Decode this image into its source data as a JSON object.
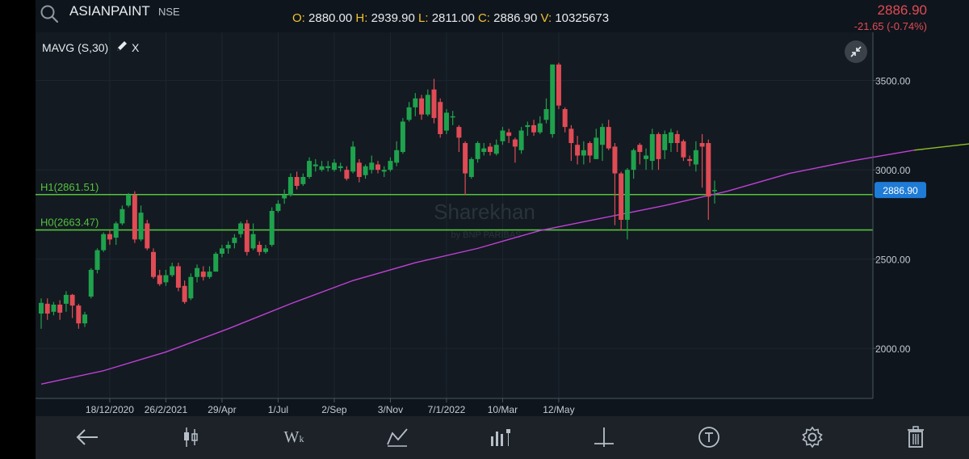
{
  "header": {
    "symbol": "ASIANPAINT",
    "exchange": "NSE",
    "ohlc": [
      {
        "key": "O:",
        "value": "2880.00"
      },
      {
        "key": "H:",
        "value": "2939.90"
      },
      {
        "key": "L:",
        "value": "2811.00"
      },
      {
        "key": "C:",
        "value": "2886.90"
      },
      {
        "key": "V:",
        "value": "10325673"
      }
    ],
    "last_price": "2886.90",
    "change": "-21.65 (-0.74%)"
  },
  "indicator": {
    "label": "MAVG (S,30)",
    "remove": "X"
  },
  "watermark": {
    "brand": "Sharekhan",
    "tagline": "by BNP PARIBAS"
  },
  "toolbar": {
    "icons": [
      "back-arrow-icon",
      "candlestick-icon",
      "timeframe-icon",
      "drawing-tools-icon",
      "indicators-icon",
      "crosshair-icon",
      "trendline-icon",
      "settings-icon",
      "trash-icon"
    ],
    "timeframe_label": "W",
    "timeframe_sub": "k"
  },
  "colors": {
    "up": "#1fa24d",
    "down": "#e04b55",
    "ma": "#c040d8",
    "level": "#55c23e",
    "price_tag_bg": "#1e7bd6"
  },
  "chart_data": {
    "type": "candlestick",
    "interval": "weekly",
    "x_tick_labels": [
      "18/12/2020",
      "26/2/2021",
      "29/Apr",
      "1/Jul",
      "2/Sep",
      "3/Nov",
      "7/1/2022",
      "10/Mar",
      "12/May"
    ],
    "y_ticks": [
      2000,
      2500,
      3000,
      3500
    ],
    "y_tick_labels": [
      "2000.00",
      "2500.00",
      "3000.00",
      "3500.00"
    ],
    "ylim": [
      1720,
      3770
    ],
    "grid": true,
    "levels": [
      {
        "label": "H1(2861.51)",
        "value": 2861.51
      },
      {
        "label": "H0(2663.47)",
        "value": 2663.47
      }
    ],
    "current_price_tag": "2886.90",
    "series": [
      {
        "name": "MAVG (S,30)",
        "type": "line"
      }
    ],
    "candles": [
      [
        2195,
        2255,
        2110,
        2280
      ],
      [
        2250,
        2195,
        2160,
        2280
      ],
      [
        2205,
        2245,
        2185,
        2260
      ],
      [
        2245,
        2200,
        2160,
        2270
      ],
      [
        2250,
        2300,
        2205,
        2320
      ],
      [
        2300,
        2240,
        2170,
        2305
      ],
      [
        2240,
        2140,
        2110,
        2250
      ],
      [
        2140,
        2190,
        2120,
        2205
      ],
      [
        2290,
        2440,
        2280,
        2450
      ],
      [
        2440,
        2550,
        2420,
        2560
      ],
      [
        2550,
        2640,
        2540,
        2650
      ],
      [
        2640,
        2610,
        2580,
        2660
      ],
      [
        2620,
        2700,
        2580,
        2710
      ],
      [
        2700,
        2780,
        2690,
        2800
      ],
      [
        2800,
        2860,
        2790,
        2870
      ],
      [
        2860,
        2610,
        2590,
        2880
      ],
      [
        2610,
        2760,
        2600,
        2800
      ],
      [
        2700,
        2560,
        2550,
        2720
      ],
      [
        2540,
        2400,
        2390,
        2560
      ],
      [
        2410,
        2360,
        2350,
        2440
      ],
      [
        2370,
        2410,
        2350,
        2440
      ],
      [
        2410,
        2460,
        2400,
        2480
      ],
      [
        2460,
        2340,
        2320,
        2480
      ],
      [
        2350,
        2260,
        2250,
        2380
      ],
      [
        2280,
        2400,
        2270,
        2420
      ],
      [
        2400,
        2450,
        2370,
        2470
      ],
      [
        2430,
        2400,
        2380,
        2460
      ],
      [
        2400,
        2430,
        2390,
        2460
      ],
      [
        2430,
        2530,
        2430,
        2540
      ],
      [
        2530,
        2560,
        2510,
        2580
      ],
      [
        2560,
        2580,
        2530,
        2600
      ],
      [
        2590,
        2620,
        2560,
        2640
      ],
      [
        2640,
        2700,
        2620,
        2710
      ],
      [
        2700,
        2540,
        2520,
        2720
      ],
      [
        2560,
        2640,
        2550,
        2700
      ],
      [
        2580,
        2540,
        2520,
        2600
      ],
      [
        2540,
        2560,
        2530,
        2580
      ],
      [
        2580,
        2770,
        2570,
        2790
      ],
      [
        2770,
        2810,
        2760,
        2830
      ],
      [
        2840,
        2860,
        2810,
        2890
      ],
      [
        2860,
        2960,
        2850,
        2980
      ],
      [
        2960,
        2910,
        2890,
        2990
      ],
      [
        2920,
        2960,
        2910,
        2980
      ],
      [
        2960,
        3050,
        2950,
        3070
      ],
      [
        3020,
        3030,
        2990,
        3060
      ],
      [
        3000,
        3020,
        2990,
        3050
      ],
      [
        3010,
        3020,
        2990,
        3050
      ],
      [
        3000,
        3040,
        2990,
        3060
      ],
      [
        3010,
        3020,
        2990,
        3040
      ],
      [
        3000,
        2950,
        2940,
        3020
      ],
      [
        2990,
        3130,
        2980,
        3160
      ],
      [
        3040,
        2960,
        2930,
        3060
      ],
      [
        2970,
        3020,
        2950,
        3030
      ],
      [
        3000,
        3040,
        2980,
        3080
      ],
      [
        3030,
        3000,
        2980,
        3050
      ],
      [
        2990,
        3000,
        2960,
        3020
      ],
      [
        3000,
        3050,
        2990,
        3070
      ],
      [
        3040,
        3110,
        3020,
        3160
      ],
      [
        3100,
        3270,
        3090,
        3290
      ],
      [
        3280,
        3350,
        3270,
        3380
      ],
      [
        3350,
        3400,
        3300,
        3430
      ],
      [
        3400,
        3310,
        3280,
        3420
      ],
      [
        3310,
        3420,
        3300,
        3450
      ],
      [
        3450,
        3290,
        3260,
        3510
      ],
      [
        3380,
        3200,
        3180,
        3400
      ],
      [
        3220,
        3320,
        3200,
        3340
      ],
      [
        3300,
        3300,
        3250,
        3330
      ],
      [
        3240,
        3180,
        3100,
        3250
      ],
      [
        3150,
        2980,
        2860,
        3160
      ],
      [
        2960,
        3060,
        2950,
        3070
      ],
      [
        3060,
        3150,
        3040,
        3160
      ],
      [
        3100,
        3120,
        3080,
        3150
      ],
      [
        3130,
        3100,
        3080,
        3150
      ],
      [
        3090,
        3140,
        3080,
        3170
      ],
      [
        3160,
        3220,
        3140,
        3240
      ],
      [
        3210,
        3190,
        3150,
        3230
      ],
      [
        3170,
        3130,
        3040,
        3180
      ],
      [
        3110,
        3220,
        3090,
        3240
      ],
      [
        3240,
        3250,
        3190,
        3270
      ],
      [
        3250,
        3210,
        3190,
        3280
      ],
      [
        3210,
        3260,
        3200,
        3300
      ],
      [
        3280,
        3340,
        3260,
        3400
      ],
      [
        3200,
        3590,
        3180,
        3590
      ],
      [
        3590,
        3360,
        3340,
        3600
      ],
      [
        3340,
        3240,
        3210,
        3350
      ],
      [
        3230,
        3150,
        3050,
        3250
      ],
      [
        3140,
        3080,
        3030,
        3190
      ],
      [
        3080,
        3110,
        3030,
        3160
      ],
      [
        3150,
        3080,
        3040,
        3160
      ],
      [
        3060,
        3180,
        3060,
        3230
      ],
      [
        3140,
        3240,
        3050,
        3260
      ],
      [
        3240,
        3120,
        3110,
        3280
      ],
      [
        3130,
        2980,
        2690,
        3150
      ],
      [
        2980,
        2720,
        2660,
        2990
      ],
      [
        2720,
        3000,
        2610,
        3010
      ],
      [
        3000,
        3110,
        2950,
        3120
      ],
      [
        3140,
        3100,
        3030,
        3150
      ],
      [
        3060,
        3080,
        3000,
        3120
      ],
      [
        3050,
        3200,
        3000,
        3230
      ],
      [
        3200,
        3060,
        3000,
        3210
      ],
      [
        3110,
        3200,
        3060,
        3220
      ],
      [
        3150,
        3210,
        3100,
        3230
      ],
      [
        3200,
        3150,
        3100,
        3220
      ],
      [
        3160,
        3070,
        3050,
        3170
      ],
      [
        3060,
        3050,
        3020,
        3080
      ],
      [
        3030,
        3110,
        2990,
        3160
      ],
      [
        3150,
        3130,
        2900,
        3200
      ],
      [
        3150,
        2850,
        2720,
        3170
      ],
      [
        2880,
        2887,
        2811,
        2940
      ]
    ],
    "ma_30": [
      [
        0,
        1800
      ],
      [
        10,
        1875
      ],
      [
        20,
        1980
      ],
      [
        30,
        2110
      ],
      [
        40,
        2250
      ],
      [
        50,
        2380
      ],
      [
        60,
        2480
      ],
      [
        70,
        2560
      ],
      [
        80,
        2660
      ],
      [
        90,
        2730
      ],
      [
        100,
        2800
      ],
      [
        110,
        2880
      ],
      [
        120,
        2980
      ],
      [
        130,
        3050
      ],
      [
        140,
        3110
      ],
      [
        150,
        3150
      ]
    ]
  }
}
